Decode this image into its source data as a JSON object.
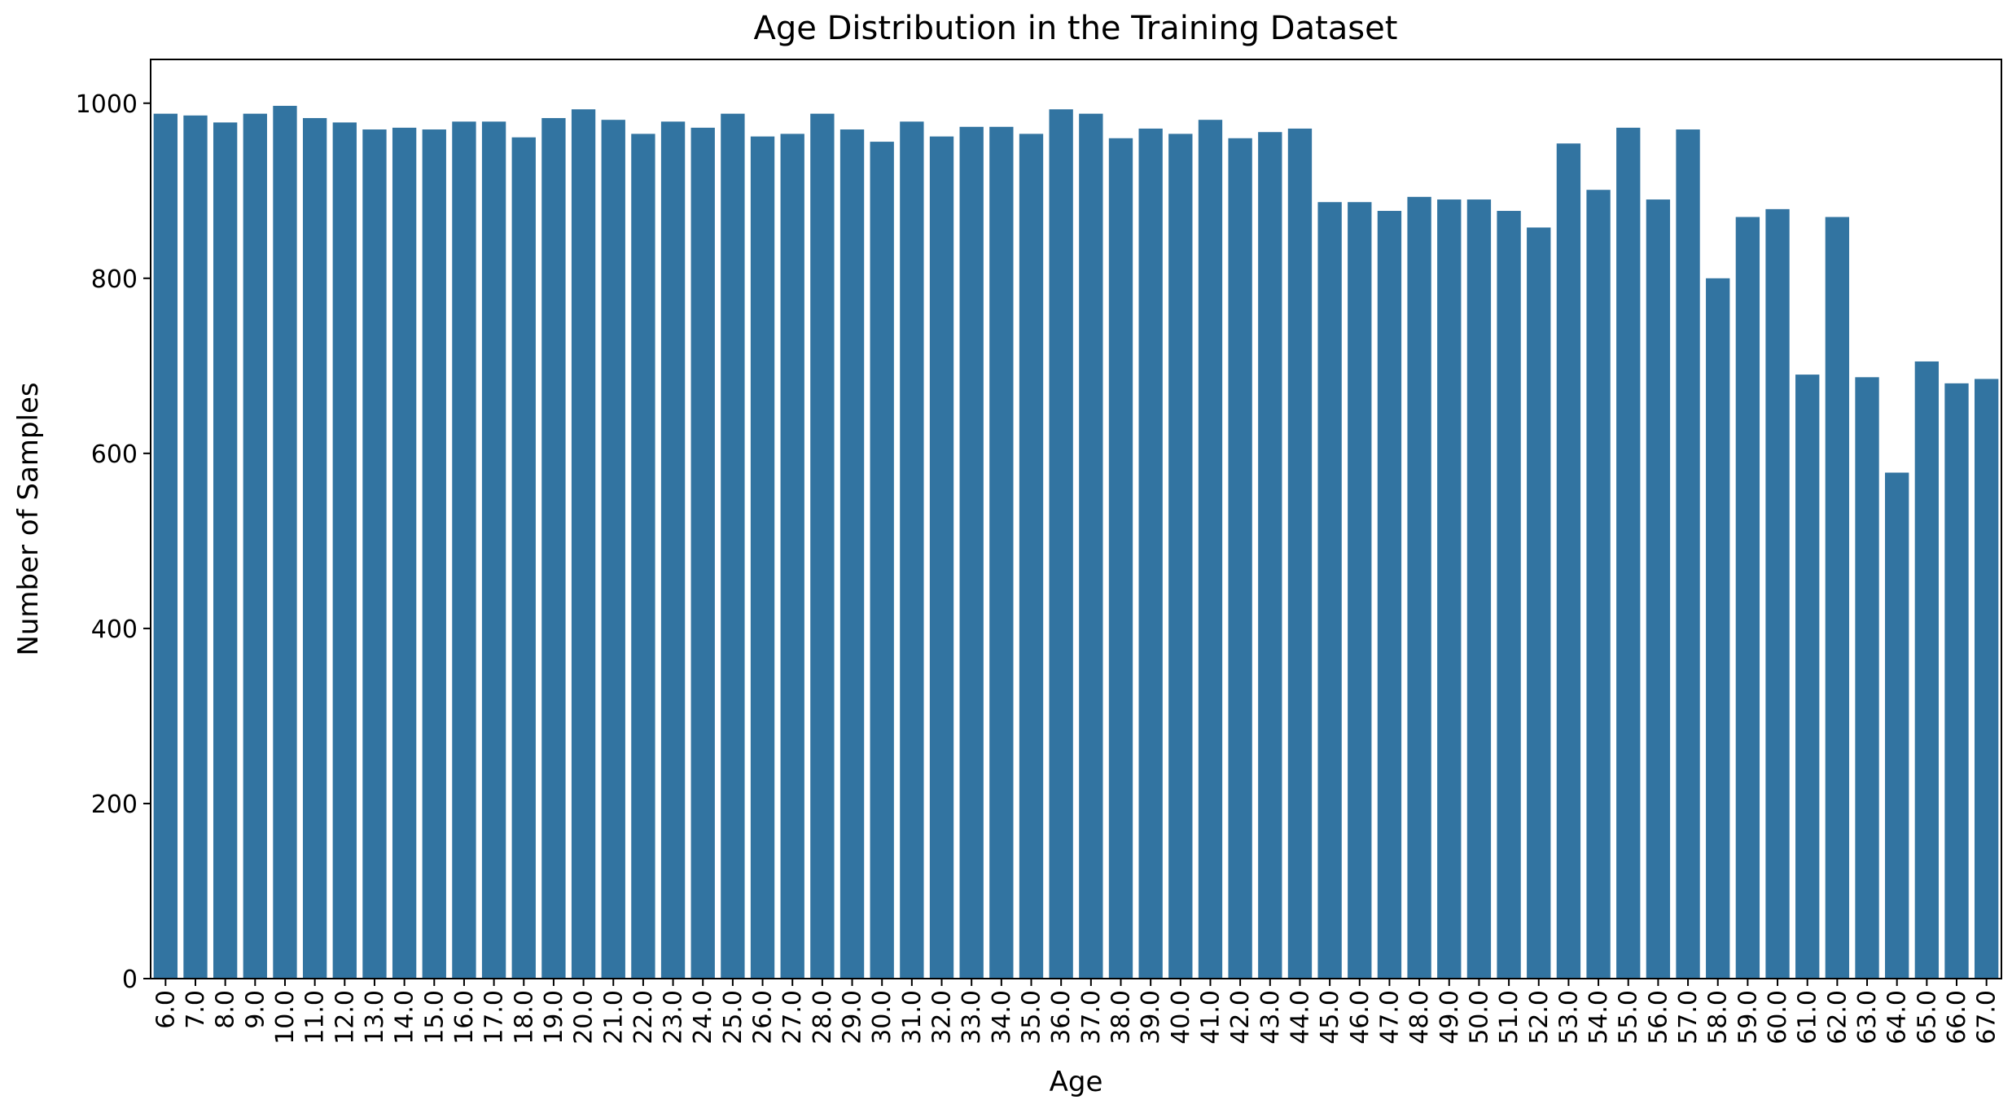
{
  "chart_data": {
    "type": "bar",
    "title": "Age Distribution in the Training Dataset",
    "xlabel": "Age",
    "ylabel": "Number of Samples",
    "ylim": [
      0,
      1050
    ],
    "yticks": [
      0,
      200,
      400,
      600,
      800,
      1000
    ],
    "grid": false,
    "bar_color": "#3274a1",
    "categories": [
      "6.0",
      "7.0",
      "8.0",
      "9.0",
      "10.0",
      "11.0",
      "12.0",
      "13.0",
      "14.0",
      "15.0",
      "16.0",
      "17.0",
      "18.0",
      "19.0",
      "20.0",
      "21.0",
      "22.0",
      "23.0",
      "24.0",
      "25.0",
      "26.0",
      "27.0",
      "28.0",
      "29.0",
      "30.0",
      "31.0",
      "32.0",
      "33.0",
      "34.0",
      "35.0",
      "36.0",
      "37.0",
      "38.0",
      "39.0",
      "40.0",
      "41.0",
      "42.0",
      "43.0",
      "44.0",
      "45.0",
      "46.0",
      "47.0",
      "48.0",
      "49.0",
      "50.0",
      "51.0",
      "52.0",
      "53.0",
      "54.0",
      "55.0",
      "56.0",
      "57.0",
      "58.0",
      "59.0",
      "60.0",
      "61.0",
      "62.0",
      "63.0",
      "64.0",
      "65.0",
      "66.0",
      "67.0"
    ],
    "values": [
      988,
      986,
      978,
      988,
      997,
      983,
      978,
      970,
      972,
      970,
      979,
      979,
      961,
      983,
      993,
      981,
      965,
      979,
      972,
      988,
      962,
      965,
      988,
      970,
      956,
      979,
      962,
      973,
      973,
      965,
      993,
      988,
      960,
      971,
      965,
      981,
      960,
      967,
      971,
      887,
      887,
      877,
      893,
      890,
      890,
      877,
      858,
      954,
      901,
      972,
      890,
      970,
      800,
      870,
      879,
      690,
      870,
      687,
      578,
      705,
      680,
      685
    ]
  }
}
